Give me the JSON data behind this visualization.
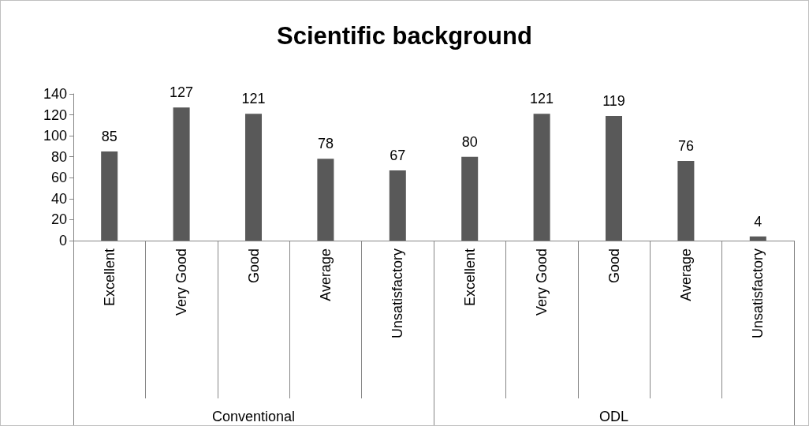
{
  "chart_data": {
    "type": "bar",
    "title": "Scientific background",
    "categories": [
      "Excellent",
      "Very Good",
      "Good",
      "Average",
      "Unsatisfactory",
      "Excellent",
      "Very Good",
      "Good",
      "Average",
      "Unsatisfactory"
    ],
    "values": [
      85,
      127,
      121,
      78,
      67,
      80,
      121,
      119,
      76,
      4
    ],
    "color": "#595959",
    "ylim": [
      0,
      140
    ],
    "yticks": [
      0,
      20,
      40,
      60,
      80,
      100,
      120,
      140
    ],
    "grid": false,
    "data_labels": true,
    "annotations": [
      "Conventional",
      "ODL"
    ]
  }
}
